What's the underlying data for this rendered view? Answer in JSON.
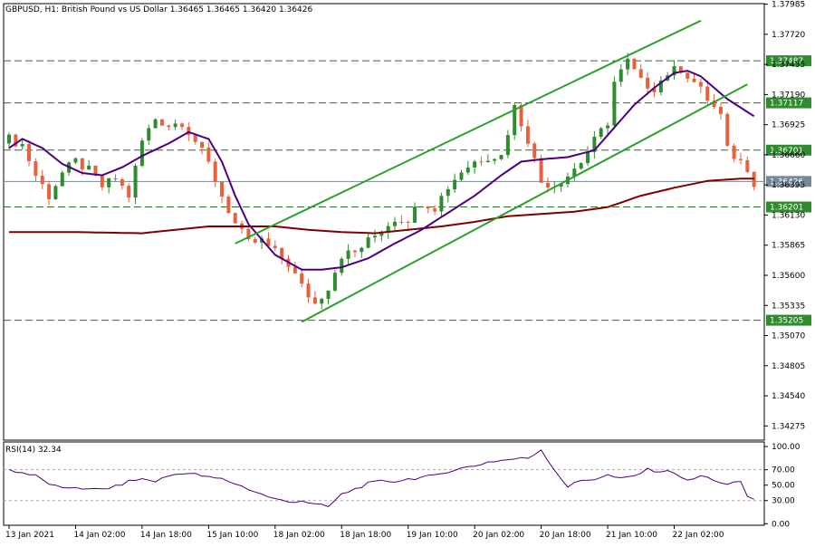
{
  "header": {
    "symbol_line": "GBPUSD, H1:  British Pound vs US Dollar  1.36465 1.36465 1.36420 1.36426"
  },
  "rsi_header": "RSI(14) 32.34",
  "colors": {
    "background": "#ffffff",
    "grid_dash": "#000000",
    "bull_candle": "#2e8b2e",
    "bear_candle": "#e8603c",
    "channel": "#2ca02c",
    "ma_fast": "#4b0082",
    "ma_slow": "#800000",
    "rsi_line": "#4b0082",
    "current_price_line": "#778899"
  },
  "chart_data": [
    {
      "type": "candlestick",
      "title": "GBPUSD, H1:  British Pound vs US Dollar  1.36465 1.36465 1.36420 1.36426",
      "ylim": [
        1.3415,
        1.3799
      ],
      "y_ticks": [
        "1.37985",
        "1.37720",
        "1.37455",
        "1.37190",
        "1.36925",
        "1.36660",
        "1.36395",
        "1.36130",
        "1.35865",
        "1.35600",
        "1.35335",
        "1.35070",
        "1.34805",
        "1.34540",
        "1.34275"
      ],
      "x_labels": [
        "13 Jan 2021",
        "14 Jan 02:00",
        "14 Jan 18:00",
        "15 Jan 10:00",
        "18 Jan 02:00",
        "18 Jan 18:00",
        "19 Jan 10:00",
        "20 Jan 02:00",
        "20 Jan 18:00",
        "21 Jan 10:00",
        "22 Jan 02:00"
      ],
      "x_label_index": [
        0,
        10,
        20,
        30,
        40,
        50,
        60,
        70,
        80,
        90,
        100
      ],
      "horizontal_levels": [
        {
          "value": 1.37487,
          "label": "1.37487"
        },
        {
          "value": 1.37117,
          "label": "1.37117"
        },
        {
          "value": 1.36701,
          "label": "1.36701"
        },
        {
          "value": 1.36201,
          "label": "1.36201"
        },
        {
          "value": 1.35205,
          "label": "1.35205"
        }
      ],
      "current_price": {
        "value": 1.36426,
        "label": "1.36426"
      },
      "trend_channel": [
        {
          "name": "upper",
          "from": [
            34,
            1.3588
          ],
          "to": [
            104,
            1.3784
          ]
        },
        {
          "name": "lower",
          "from": [
            44,
            1.3519
          ],
          "to": [
            111,
            1.3728
          ]
        }
      ],
      "close_anchors": [
        [
          0,
          1.368
        ],
        [
          2,
          1.3675
        ],
        [
          4,
          1.3648
        ],
        [
          6,
          1.363
        ],
        [
          8,
          1.365
        ],
        [
          10,
          1.366
        ],
        [
          12,
          1.3652
        ],
        [
          14,
          1.3638
        ],
        [
          16,
          1.3645
        ],
        [
          18,
          1.363
        ],
        [
          20,
          1.3678
        ],
        [
          22,
          1.3698
        ],
        [
          24,
          1.3692
        ],
        [
          26,
          1.3695
        ],
        [
          28,
          1.3678
        ],
        [
          30,
          1.3658
        ],
        [
          32,
          1.363
        ],
        [
          34,
          1.3605
        ],
        [
          36,
          1.3588
        ],
        [
          38,
          1.359
        ],
        [
          40,
          1.358
        ],
        [
          42,
          1.357
        ],
        [
          44,
          1.355
        ],
        [
          46,
          1.3535
        ],
        [
          48,
          1.355
        ],
        [
          50,
          1.3578
        ],
        [
          52,
          1.358
        ],
        [
          54,
          1.359
        ],
        [
          56,
          1.36
        ],
        [
          58,
          1.361
        ],
        [
          60,
          1.361
        ],
        [
          62,
          1.3625
        ],
        [
          64,
          1.362
        ],
        [
          66,
          1.3638
        ],
        [
          68,
          1.3652
        ],
        [
          70,
          1.366
        ],
        [
          72,
          1.3665
        ],
        [
          74,
          1.3665
        ],
        [
          76,
          1.3708
        ],
        [
          78,
          1.368
        ],
        [
          80,
          1.3642
        ],
        [
          82,
          1.364
        ],
        [
          84,
          1.3648
        ],
        [
          86,
          1.366
        ],
        [
          88,
          1.3678
        ],
        [
          90,
          1.3695
        ],
        [
          91,
          1.373
        ],
        [
          93,
          1.3748
        ],
        [
          95,
          1.373
        ],
        [
          97,
          1.3725
        ],
        [
          99,
          1.3738
        ],
        [
          101,
          1.3742
        ],
        [
          103,
          1.373
        ],
        [
          105,
          1.3715
        ],
        [
          107,
          1.37
        ],
        [
          108,
          1.367
        ],
        [
          110,
          1.366
        ],
        [
          111,
          1.3655
        ],
        [
          112,
          1.3642
        ]
      ],
      "ma_fast_anchors": [
        [
          0,
          1.3672
        ],
        [
          2,
          1.368
        ],
        [
          5,
          1.3672
        ],
        [
          8,
          1.3658
        ],
        [
          11,
          1.365
        ],
        [
          14,
          1.3648
        ],
        [
          17,
          1.3655
        ],
        [
          20,
          1.3665
        ],
        [
          24,
          1.3676
        ],
        [
          27,
          1.3686
        ],
        [
          30,
          1.368
        ],
        [
          32,
          1.366
        ],
        [
          34,
          1.363
        ],
        [
          36,
          1.3605
        ],
        [
          40,
          1.3578
        ],
        [
          44,
          1.3565
        ],
        [
          47,
          1.3565
        ],
        [
          50,
          1.3567
        ],
        [
          54,
          1.3575
        ],
        [
          58,
          1.3588
        ],
        [
          62,
          1.36
        ],
        [
          66,
          1.3615
        ],
        [
          70,
          1.363
        ],
        [
          74,
          1.3648
        ],
        [
          77,
          1.366
        ],
        [
          80,
          1.3662
        ],
        [
          84,
          1.3664
        ],
        [
          88,
          1.367
        ],
        [
          91,
          1.369
        ],
        [
          94,
          1.371
        ],
        [
          97,
          1.3725
        ],
        [
          100,
          1.3738
        ],
        [
          102,
          1.374
        ],
        [
          104,
          1.3735
        ],
        [
          106,
          1.3725
        ],
        [
          108,
          1.3715
        ],
        [
          112,
          1.37
        ]
      ],
      "ma_slow_anchors": [
        [
          0,
          1.3598
        ],
        [
          10,
          1.3598
        ],
        [
          20,
          1.3597
        ],
        [
          30,
          1.3603
        ],
        [
          40,
          1.3603
        ],
        [
          45,
          1.36
        ],
        [
          50,
          1.3598
        ],
        [
          55,
          1.3597
        ],
        [
          60,
          1.36
        ],
        [
          65,
          1.3603
        ],
        [
          70,
          1.3607
        ],
        [
          75,
          1.3612
        ],
        [
          80,
          1.3614
        ],
        [
          85,
          1.3616
        ],
        [
          90,
          1.362
        ],
        [
          95,
          1.363
        ],
        [
          100,
          1.3637
        ],
        [
          105,
          1.3643
        ],
        [
          110,
          1.3645
        ],
        [
          112,
          1.3645
        ]
      ]
    },
    {
      "type": "line",
      "title": "RSI(14) 32.34",
      "ylim": [
        -2,
        106
      ],
      "y_ticks": [
        "100.00",
        "70.00",
        "50.00",
        "30.00",
        "0.00"
      ],
      "levels": [
        70,
        30
      ],
      "values": [
        [
          0,
          70
        ],
        [
          2,
          66
        ],
        [
          4,
          62
        ],
        [
          6,
          52
        ],
        [
          8,
          45
        ],
        [
          10,
          48
        ],
        [
          12,
          44
        ],
        [
          14,
          45
        ],
        [
          16,
          48
        ],
        [
          18,
          55
        ],
        [
          20,
          58
        ],
        [
          22,
          55
        ],
        [
          24,
          62
        ],
        [
          26,
          66
        ],
        [
          28,
          64
        ],
        [
          30,
          60
        ],
        [
          32,
          58
        ],
        [
          34,
          52
        ],
        [
          36,
          45
        ],
        [
          38,
          38
        ],
        [
          40,
          32
        ],
        [
          42,
          28
        ],
        [
          44,
          30
        ],
        [
          46,
          25
        ],
        [
          48,
          22
        ],
        [
          50,
          38
        ],
        [
          52,
          45
        ],
        [
          54,
          52
        ],
        [
          56,
          55
        ],
        [
          58,
          55
        ],
        [
          60,
          58
        ],
        [
          62,
          60
        ],
        [
          64,
          62
        ],
        [
          66,
          68
        ],
        [
          68,
          72
        ],
        [
          70,
          75
        ],
        [
          72,
          80
        ],
        [
          74,
          82
        ],
        [
          76,
          84
        ],
        [
          78,
          85
        ],
        [
          80,
          96
        ],
        [
          82,
          70
        ],
        [
          84,
          48
        ],
        [
          86,
          56
        ],
        [
          88,
          58
        ],
        [
          90,
          63
        ],
        [
          92,
          58
        ],
        [
          94,
          62
        ],
        [
          96,
          70
        ],
        [
          98,
          68
        ],
        [
          100,
          67
        ],
        [
          102,
          55
        ],
        [
          104,
          62
        ],
        [
          106,
          57
        ],
        [
          108,
          50
        ],
        [
          110,
          55
        ],
        [
          111,
          35
        ],
        [
          112,
          32
        ]
      ]
    }
  ]
}
